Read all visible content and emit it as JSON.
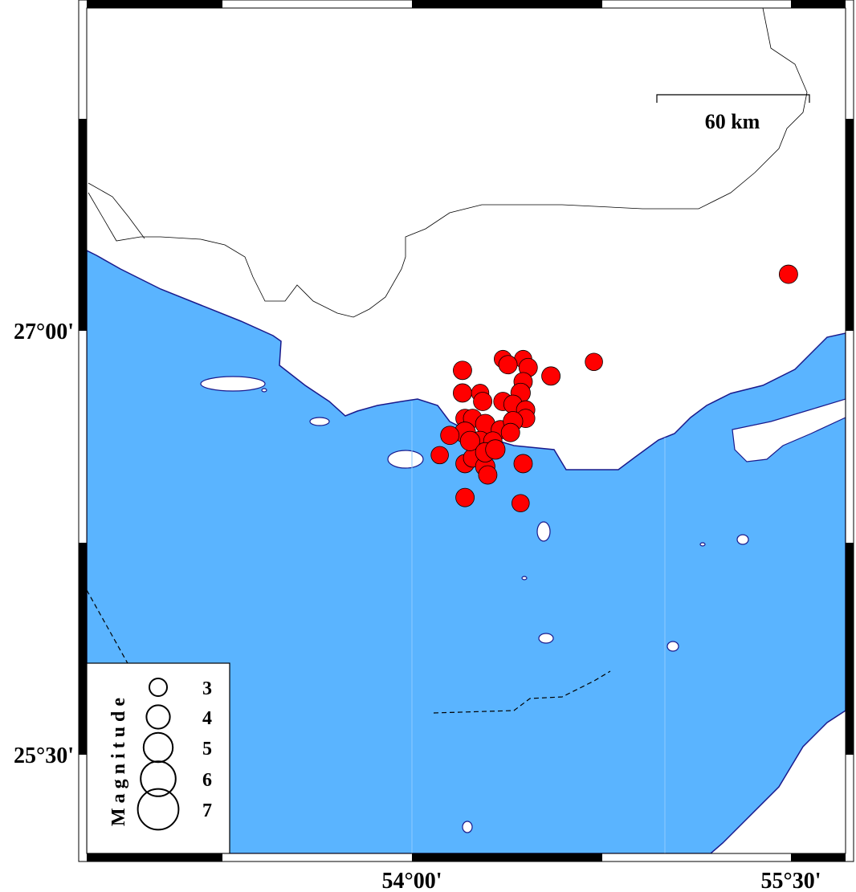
{
  "map": {
    "extent": {
      "lon": [
        52.71,
        55.72
      ],
      "lat": [
        25.15,
        28.14
      ]
    },
    "colors": {
      "sea": "#5ab4ff",
      "land": "#ffffff",
      "coastline": "#1a1a8c",
      "event": "#ff0000"
    },
    "scale_bar": {
      "label": "60 km"
    },
    "frame_labels": {
      "lat": [
        {
          "value": 27.0,
          "label": "27°00'"
        },
        {
          "value": 25.5,
          "label": "25°30'"
        }
      ],
      "lon": [
        {
          "value": 54.0,
          "label": "54°00'"
        },
        {
          "value": 55.5,
          "label": "55°30'"
        }
      ]
    },
    "legend": {
      "title": "Magnitude",
      "entries": [
        {
          "mag": 3,
          "label": "3"
        },
        {
          "mag": 4,
          "label": "4"
        },
        {
          "mag": 5,
          "label": "5"
        },
        {
          "mag": 6,
          "label": "6"
        },
        {
          "mag": 7,
          "label": "7"
        }
      ]
    },
    "events": [
      {
        "lon": 55.49,
        "lat": 27.2,
        "mag": 3.5
      },
      {
        "lon": 54.72,
        "lat": 26.89,
        "mag": 3.3
      },
      {
        "lon": 54.55,
        "lat": 26.84,
        "mag": 3.5
      },
      {
        "lon": 54.2,
        "lat": 26.86,
        "mag": 3.5
      },
      {
        "lon": 54.36,
        "lat": 26.9,
        "mag": 3.3
      },
      {
        "lon": 54.44,
        "lat": 26.9,
        "mag": 3.3
      },
      {
        "lon": 54.38,
        "lat": 26.88,
        "mag": 3.5
      },
      {
        "lon": 54.46,
        "lat": 26.87,
        "mag": 3.5
      },
      {
        "lon": 54.44,
        "lat": 26.82,
        "mag": 3.5
      },
      {
        "lon": 54.2,
        "lat": 26.78,
        "mag": 3.5
      },
      {
        "lon": 54.27,
        "lat": 26.78,
        "mag": 3.3
      },
      {
        "lon": 54.28,
        "lat": 26.75,
        "mag": 3.5
      },
      {
        "lon": 54.36,
        "lat": 26.75,
        "mag": 3.5
      },
      {
        "lon": 54.43,
        "lat": 26.78,
        "mag": 3.7
      },
      {
        "lon": 54.4,
        "lat": 26.74,
        "mag": 3.5
      },
      {
        "lon": 54.45,
        "lat": 26.72,
        "mag": 3.5
      },
      {
        "lon": 54.45,
        "lat": 26.69,
        "mag": 3.5
      },
      {
        "lon": 54.21,
        "lat": 26.69,
        "mag": 3.5
      },
      {
        "lon": 54.24,
        "lat": 26.69,
        "mag": 3.5
      },
      {
        "lon": 54.29,
        "lat": 26.67,
        "mag": 3.7
      },
      {
        "lon": 54.35,
        "lat": 26.65,
        "mag": 3.5
      },
      {
        "lon": 54.21,
        "lat": 26.64,
        "mag": 4.0
      },
      {
        "lon": 54.15,
        "lat": 26.63,
        "mag": 3.5
      },
      {
        "lon": 54.27,
        "lat": 26.61,
        "mag": 3.7
      },
      {
        "lon": 54.32,
        "lat": 26.61,
        "mag": 3.5
      },
      {
        "lon": 54.4,
        "lat": 26.68,
        "mag": 3.7
      },
      {
        "lon": 54.39,
        "lat": 26.64,
        "mag": 3.5
      },
      {
        "lon": 54.11,
        "lat": 26.56,
        "mag": 3.3
      },
      {
        "lon": 54.44,
        "lat": 26.53,
        "mag": 3.5
      },
      {
        "lon": 54.21,
        "lat": 26.53,
        "mag": 3.5
      },
      {
        "lon": 54.24,
        "lat": 26.55,
        "mag": 3.5
      },
      {
        "lon": 54.29,
        "lat": 26.52,
        "mag": 3.7
      },
      {
        "lon": 54.3,
        "lat": 26.49,
        "mag": 3.5
      },
      {
        "lon": 54.21,
        "lat": 26.41,
        "mag": 3.5
      },
      {
        "lon": 54.43,
        "lat": 26.39,
        "mag": 3.3
      },
      {
        "lon": 54.23,
        "lat": 26.61,
        "mag": 3.7
      },
      {
        "lon": 54.29,
        "lat": 26.57,
        "mag": 3.7
      },
      {
        "lon": 54.33,
        "lat": 26.58,
        "mag": 3.7
      }
    ]
  }
}
